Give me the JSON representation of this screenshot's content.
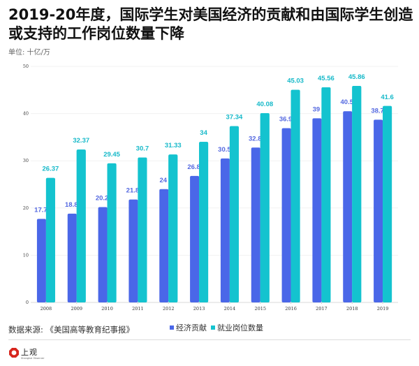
{
  "header": {
    "title": "2019-20年度，国际学生对美国经济的贡献和由国际学生创造或支持的工作岗位数量下降",
    "unit": "单位: 十亿/万"
  },
  "footer": {
    "source": "数据来源: 《美国高等教育纪事报》",
    "logo_text": "上观",
    "logo_sub": "Shanghai Observer"
  },
  "chart_data": {
    "type": "bar",
    "title": "2019-20年度，国际学生对美国经济的贡献和由国际学生创造或支持的工作岗位数量下降",
    "subtitle": "单位: 十亿/万",
    "xlabel": "",
    "ylabel": "",
    "categories": [
      "2008",
      "2009",
      "2010",
      "2011",
      "2012",
      "2013",
      "2014",
      "2015",
      "2016",
      "2017",
      "2018",
      "2019"
    ],
    "series": [
      {
        "name": "经济贡献",
        "color": "#4a67e8",
        "values": [
          17.7,
          18.8,
          20.2,
          21.8,
          24,
          26.8,
          30.5,
          32.8,
          36.9,
          39,
          40.5,
          38.7
        ]
      },
      {
        "name": "就业岗位数量",
        "color": "#14c3cf",
        "values": [
          26.37,
          32.37,
          29.45,
          30.7,
          31.33,
          34,
          37.34,
          40.08,
          45.03,
          45.56,
          45.86,
          41.6
        ]
      }
    ],
    "ylim": [
      0,
      50
    ],
    "yticks": [
      0,
      10,
      20,
      30,
      40,
      50
    ],
    "grid": true,
    "legend_position": "bottom-center",
    "source": "数据来源: 《美国高等教育纪事报》"
  }
}
